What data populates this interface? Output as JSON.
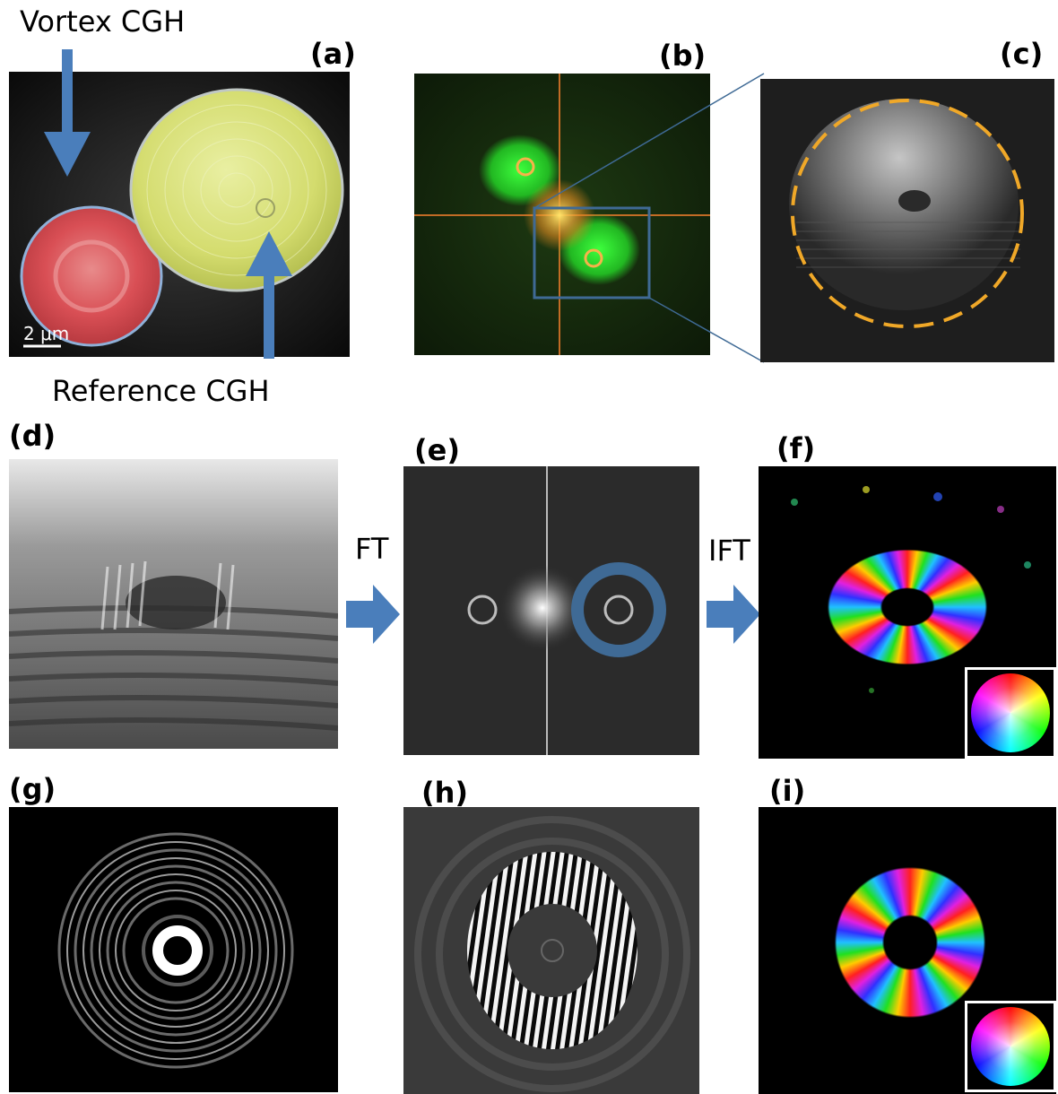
{
  "labels": {
    "a": "(a)",
    "b": "(b)",
    "c": "(c)",
    "d": "(d)",
    "e": "(e)",
    "f": "(f)",
    "g": "(g)",
    "h": "(h)",
    "i": "(i)"
  },
  "annotations": {
    "vortex": "Vortex CGH",
    "reference": "Reference CGH",
    "ft": "FT",
    "ift": "IFT",
    "scale": "2 μm"
  },
  "colors": {
    "arrow": "#4a7ebb",
    "dashed_circle": "#f0a828",
    "vortex_disc": "#d44a4a",
    "reference_disc": "#d6df6a",
    "zoom_box": "#3f6a95"
  },
  "icons": {
    "phase_wheel": "hsv-color-wheel-icon"
  }
}
